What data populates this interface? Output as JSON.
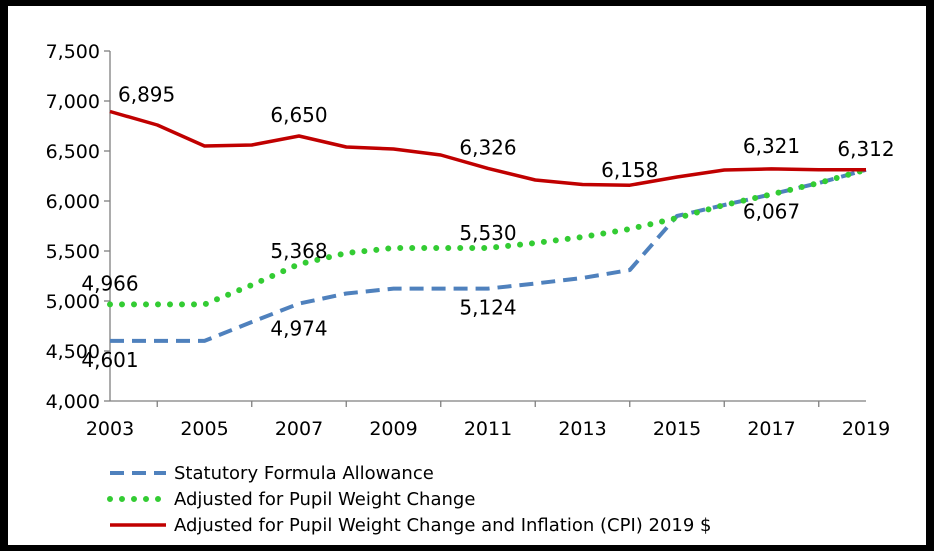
{
  "chart_data": {
    "type": "line",
    "title": "",
    "xlabel": "",
    "ylabel": "",
    "x": [
      2003,
      2004,
      2005,
      2006,
      2007,
      2008,
      2009,
      2010,
      2011,
      2012,
      2013,
      2014,
      2015,
      2016,
      2017,
      2018,
      2019
    ],
    "x_tick_labels": [
      "2003",
      "2005",
      "2007",
      "2009",
      "2011",
      "2013",
      "2015",
      "2017",
      "2019"
    ],
    "y_tick_labels": [
      "7,500",
      "7,000",
      "6,500",
      "6,000",
      "5,500",
      "5,000",
      "4,500",
      "4,000"
    ],
    "ylim": [
      4000,
      7500
    ],
    "xlim": [
      2003,
      2019
    ],
    "grid": false,
    "legend_position": "bottom",
    "series": [
      {
        "key": "statutory",
        "name": "Statutory Formula Allowance",
        "color": "#4F81BD",
        "style": "dashed",
        "values": [
          4601,
          4601,
          4601,
          4790,
          4974,
          5075,
          5124,
          5124,
          5124,
          5175,
          5230,
          5310,
          5850,
          5960,
          6067,
          6180,
          6312
        ]
      },
      {
        "key": "pupil",
        "name": " Adjusted for Pupil Weight Change",
        "color": "#33CC33",
        "style": "dotted",
        "values": [
          4966,
          4966,
          4966,
          5160,
          5368,
          5480,
          5530,
          5530,
          5530,
          5580,
          5640,
          5720,
          5830,
          5960,
          6067,
          6180,
          6312
        ]
      },
      {
        "key": "cpi",
        "name": "Adjusted for Pupil Weight Change and Inflation (CPI) 2019 $",
        "color": "#C00000",
        "style": "solid",
        "values": [
          6895,
          6760,
          6550,
          6560,
          6650,
          6540,
          6520,
          6460,
          6326,
          6210,
          6165,
          6158,
          6240,
          6310,
          6321,
          6312,
          6312
        ]
      }
    ],
    "annotations": [
      {
        "text": "6,895",
        "x": 2003,
        "y": 6895
      },
      {
        "text": "6,650",
        "x": 2007,
        "y": 6650
      },
      {
        "text": "6,326",
        "x": 2011,
        "y": 6326
      },
      {
        "text": "6,158",
        "x": 2014,
        "y": 6158
      },
      {
        "text": "6,321",
        "x": 2017,
        "y": 6321
      },
      {
        "text": "6,312",
        "x": 2019,
        "y": 6312
      },
      {
        "text": "6,067",
        "x": 2017,
        "y": 6067
      },
      {
        "text": "5,368",
        "x": 2007,
        "y": 5368
      },
      {
        "text": "5,530",
        "x": 2011,
        "y": 5530
      },
      {
        "text": "4,966",
        "x": 2003,
        "y": 4966
      },
      {
        "text": "4,974",
        "x": 2007,
        "y": 4974
      },
      {
        "text": "5,124",
        "x": 2011,
        "y": 5124
      },
      {
        "text": "4,601",
        "x": 2003,
        "y": 4601
      }
    ]
  }
}
